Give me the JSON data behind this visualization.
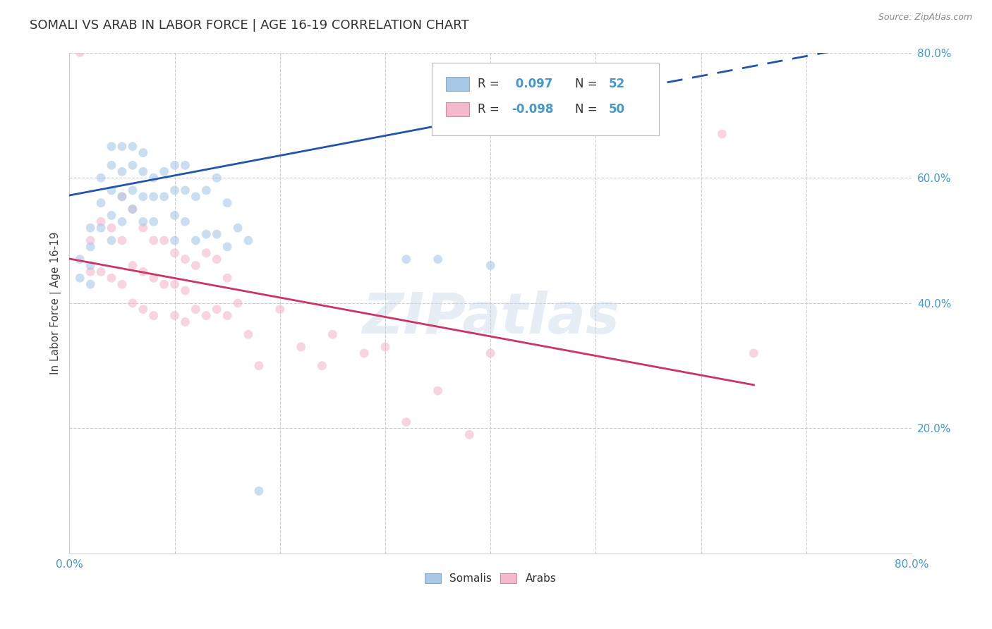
{
  "title": "SOMALI VS ARAB IN LABOR FORCE | AGE 16-19 CORRELATION CHART",
  "source": "Source: ZipAtlas.com",
  "ylabel": "In Labor Force | Age 16-19",
  "xlim": [
    0.0,
    0.8
  ],
  "ylim": [
    0.0,
    0.8
  ],
  "xtick_vals": [
    0.0,
    0.1,
    0.2,
    0.3,
    0.4,
    0.5,
    0.6,
    0.7,
    0.8
  ],
  "ytick_vals": [
    0.2,
    0.4,
    0.6,
    0.8
  ],
  "grid_color": "#cccccc",
  "background_color": "#ffffff",
  "somali_color": "#a8c8e8",
  "arab_color": "#f4b8cc",
  "somali_line_color": "#2255aa",
  "arab_line_color": "#cc3366",
  "tick_color": "#4499cc",
  "somali_R": 0.097,
  "somali_N": 52,
  "arab_R": -0.098,
  "arab_N": 50,
  "somali_x": [
    0.01,
    0.01,
    0.02,
    0.02,
    0.02,
    0.02,
    0.03,
    0.03,
    0.03,
    0.04,
    0.04,
    0.04,
    0.04,
    0.04,
    0.05,
    0.05,
    0.05,
    0.05,
    0.06,
    0.06,
    0.06,
    0.06,
    0.07,
    0.07,
    0.07,
    0.07,
    0.08,
    0.08,
    0.08,
    0.09,
    0.09,
    0.1,
    0.1,
    0.1,
    0.1,
    0.11,
    0.11,
    0.11,
    0.12,
    0.12,
    0.13,
    0.13,
    0.14,
    0.14,
    0.15,
    0.15,
    0.16,
    0.17,
    0.18,
    0.32,
    0.35,
    0.4
  ],
  "somali_y": [
    0.47,
    0.44,
    0.52,
    0.49,
    0.46,
    0.43,
    0.6,
    0.56,
    0.52,
    0.65,
    0.62,
    0.58,
    0.54,
    0.5,
    0.65,
    0.61,
    0.57,
    0.53,
    0.65,
    0.62,
    0.58,
    0.55,
    0.64,
    0.61,
    0.57,
    0.53,
    0.6,
    0.57,
    0.53,
    0.61,
    0.57,
    0.62,
    0.58,
    0.54,
    0.5,
    0.62,
    0.58,
    0.53,
    0.57,
    0.5,
    0.58,
    0.51,
    0.6,
    0.51,
    0.56,
    0.49,
    0.52,
    0.5,
    0.1,
    0.47,
    0.47,
    0.46
  ],
  "arab_x": [
    0.01,
    0.02,
    0.02,
    0.03,
    0.03,
    0.04,
    0.04,
    0.05,
    0.05,
    0.05,
    0.06,
    0.06,
    0.06,
    0.07,
    0.07,
    0.07,
    0.08,
    0.08,
    0.08,
    0.09,
    0.09,
    0.1,
    0.1,
    0.1,
    0.11,
    0.11,
    0.11,
    0.12,
    0.12,
    0.13,
    0.13,
    0.14,
    0.14,
    0.15,
    0.15,
    0.16,
    0.17,
    0.18,
    0.2,
    0.22,
    0.24,
    0.25,
    0.28,
    0.3,
    0.32,
    0.35,
    0.38,
    0.4,
    0.62,
    0.65
  ],
  "arab_y": [
    0.8,
    0.5,
    0.45,
    0.53,
    0.45,
    0.52,
    0.44,
    0.57,
    0.5,
    0.43,
    0.55,
    0.46,
    0.4,
    0.52,
    0.45,
    0.39,
    0.5,
    0.44,
    0.38,
    0.5,
    0.43,
    0.48,
    0.43,
    0.38,
    0.47,
    0.42,
    0.37,
    0.46,
    0.39,
    0.48,
    0.38,
    0.47,
    0.39,
    0.44,
    0.38,
    0.4,
    0.35,
    0.3,
    0.39,
    0.33,
    0.3,
    0.35,
    0.32,
    0.33,
    0.21,
    0.26,
    0.19,
    0.32,
    0.67,
    0.32
  ],
  "watermark_text": "ZIPatlas",
  "watermark_color": "#c8d8e8",
  "watermark_alpha": 0.45,
  "title_fontsize": 13,
  "axis_label_fontsize": 11,
  "tick_fontsize": 11,
  "legend_fontsize": 12,
  "source_fontsize": 9,
  "marker_size": 85,
  "marker_alpha": 0.6,
  "line_width": 2.0
}
